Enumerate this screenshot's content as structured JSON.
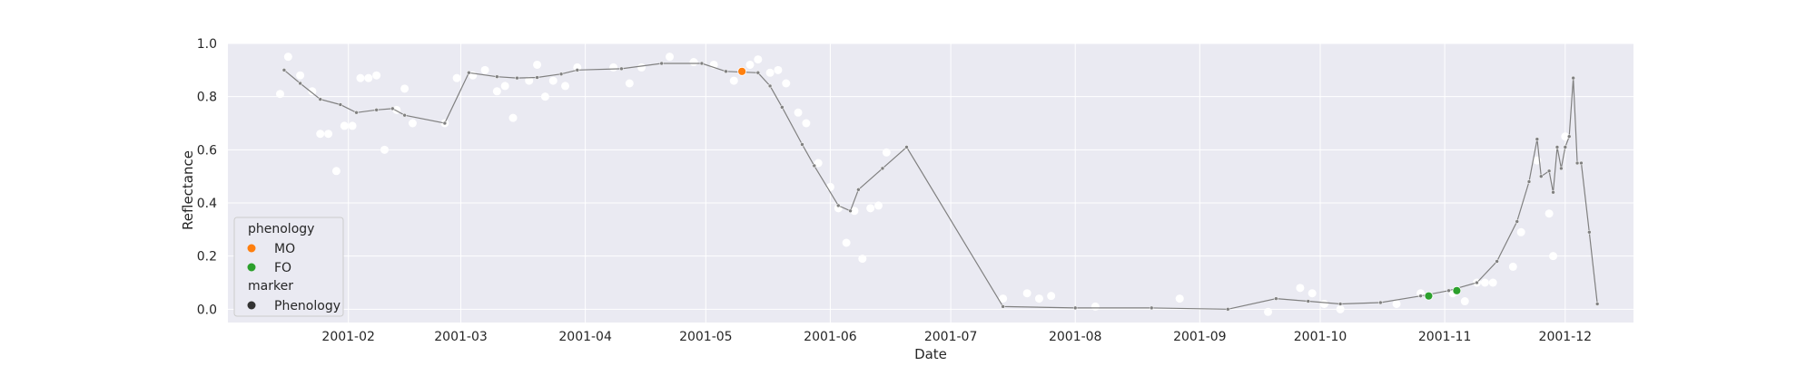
{
  "colors": {
    "plot_bg": "#eaeaf2",
    "grid": "#ffffff",
    "line": "#808080",
    "point_fill": "#808080",
    "point_edge": "#ffffff",
    "raw": "#ffffff",
    "MO": "#ff7f0e",
    "FO": "#2ca02c",
    "marker_dot": "#333333",
    "legend_border": "#cccccc"
  },
  "legend": {
    "title_hue": "phenology",
    "mo_label": "MO",
    "fo_label": "FO",
    "title_marker": "marker",
    "marker_label": "Phenology",
    "placement": "lower-left"
  },
  "chart_data": {
    "type": "scatter",
    "xlabel": "Date",
    "ylabel": "Reflectance",
    "xlim": [
      "2001-01-02",
      "2001-12-18"
    ],
    "ylim": [
      -0.05,
      1.0
    ],
    "x_ticks": [
      "2001-02",
      "2001-03",
      "2001-04",
      "2001-05",
      "2001-06",
      "2001-07",
      "2001-08",
      "2001-09",
      "2001-10",
      "2001-11",
      "2001-12"
    ],
    "y_ticks": [
      "0.0",
      "0.2",
      "0.4",
      "0.6",
      "0.8",
      "1.0"
    ],
    "grid": true,
    "series": [
      {
        "kind": "line",
        "points": [
          [
            "2001-01-16",
            0.9
          ],
          [
            "2001-01-20",
            0.85
          ],
          [
            "2001-01-25",
            0.79
          ],
          [
            "2001-01-30",
            0.77
          ],
          [
            "2001-02-03",
            0.74
          ],
          [
            "2001-02-08",
            0.75
          ],
          [
            "2001-02-12",
            0.755
          ],
          [
            "2001-02-15",
            0.73
          ],
          [
            "2001-02-25",
            0.7
          ],
          [
            "2001-03-03",
            0.89
          ],
          [
            "2001-03-10",
            0.875
          ],
          [
            "2001-03-15",
            0.87
          ],
          [
            "2001-03-20",
            0.872
          ],
          [
            "2001-03-26",
            0.885
          ],
          [
            "2001-03-30",
            0.9
          ],
          [
            "2001-04-10",
            0.905
          ],
          [
            "2001-04-20",
            0.925
          ],
          [
            "2001-04-30",
            0.925
          ],
          [
            "2001-05-06",
            0.895
          ],
          [
            "2001-05-14",
            0.89
          ],
          [
            "2001-05-17",
            0.84
          ],
          [
            "2001-05-20",
            0.76
          ],
          [
            "2001-05-25",
            0.62
          ],
          [
            "2001-05-28",
            0.54
          ],
          [
            "2001-06-03",
            0.39
          ],
          [
            "2001-06-06",
            0.37
          ],
          [
            "2001-06-08",
            0.45
          ],
          [
            "2001-06-14",
            0.53
          ],
          [
            "2001-06-20",
            0.61
          ],
          [
            "2001-07-14",
            0.01
          ],
          [
            "2001-08-01",
            0.005
          ],
          [
            "2001-08-20",
            0.005
          ],
          [
            "2001-09-08",
            0.0
          ],
          [
            "2001-09-20",
            0.04
          ],
          [
            "2001-09-28",
            0.03
          ],
          [
            "2001-10-06",
            0.02
          ],
          [
            "2001-10-16",
            0.025
          ],
          [
            "2001-10-26",
            0.05
          ],
          [
            "2001-11-02",
            0.07
          ],
          [
            "2001-11-09",
            0.1
          ],
          [
            "2001-11-14",
            0.18
          ],
          [
            "2001-11-19",
            0.33
          ],
          [
            "2001-11-22",
            0.48
          ],
          [
            "2001-11-24",
            0.64
          ],
          [
            "2001-11-25",
            0.5
          ],
          [
            "2001-11-27",
            0.52
          ],
          [
            "2001-11-28",
            0.44
          ],
          [
            "2001-11-29",
            0.61
          ],
          [
            "2001-11-30",
            0.53
          ],
          [
            "2001-12-01",
            0.61
          ],
          [
            "2001-12-02",
            0.65
          ],
          [
            "2001-12-03",
            0.87
          ],
          [
            "2001-12-04",
            0.55
          ],
          [
            "2001-12-05",
            0.55
          ],
          [
            "2001-12-07",
            0.29
          ],
          [
            "2001-12-09",
            0.02
          ]
        ]
      },
      {
        "kind": "raw-points",
        "points": [
          [
            "2001-01-15",
            0.81
          ],
          [
            "2001-01-17",
            0.95
          ],
          [
            "2001-01-20",
            0.88
          ],
          [
            "2001-01-23",
            0.82
          ],
          [
            "2001-01-25",
            0.66
          ],
          [
            "2001-01-27",
            0.66
          ],
          [
            "2001-01-29",
            0.52
          ],
          [
            "2001-01-31",
            0.69
          ],
          [
            "2001-02-02",
            0.69
          ],
          [
            "2001-02-04",
            0.87
          ],
          [
            "2001-02-06",
            0.87
          ],
          [
            "2001-02-08",
            0.88
          ],
          [
            "2001-02-10",
            0.6
          ],
          [
            "2001-02-13",
            0.75
          ],
          [
            "2001-02-15",
            0.83
          ],
          [
            "2001-02-17",
            0.7
          ],
          [
            "2001-02-25",
            0.7
          ],
          [
            "2001-02-28",
            0.87
          ],
          [
            "2001-03-04",
            0.88
          ],
          [
            "2001-03-07",
            0.9
          ],
          [
            "2001-03-10",
            0.82
          ],
          [
            "2001-03-12",
            0.84
          ],
          [
            "2001-03-14",
            0.72
          ],
          [
            "2001-03-18",
            0.86
          ],
          [
            "2001-03-20",
            0.92
          ],
          [
            "2001-03-22",
            0.8
          ],
          [
            "2001-03-24",
            0.86
          ],
          [
            "2001-03-27",
            0.84
          ],
          [
            "2001-03-30",
            0.91
          ],
          [
            "2001-04-08",
            0.91
          ],
          [
            "2001-04-12",
            0.85
          ],
          [
            "2001-04-15",
            0.91
          ],
          [
            "2001-04-22",
            0.95
          ],
          [
            "2001-04-28",
            0.93
          ],
          [
            "2001-05-03",
            0.92
          ],
          [
            "2001-05-08",
            0.86
          ],
          [
            "2001-05-12",
            0.92
          ],
          [
            "2001-05-14",
            0.94
          ],
          [
            "2001-05-17",
            0.89
          ],
          [
            "2001-05-19",
            0.9
          ],
          [
            "2001-05-21",
            0.85
          ],
          [
            "2001-05-24",
            0.74
          ],
          [
            "2001-05-26",
            0.7
          ],
          [
            "2001-05-29",
            0.55
          ],
          [
            "2001-06-01",
            0.46
          ],
          [
            "2001-06-03",
            0.38
          ],
          [
            "2001-06-05",
            0.25
          ],
          [
            "2001-06-07",
            0.37
          ],
          [
            "2001-06-09",
            0.19
          ],
          [
            "2001-06-11",
            0.38
          ],
          [
            "2001-06-13",
            0.39
          ],
          [
            "2001-06-15",
            0.59
          ],
          [
            "2001-07-14",
            0.04
          ],
          [
            "2001-07-20",
            0.06
          ],
          [
            "2001-07-23",
            0.04
          ],
          [
            "2001-07-26",
            0.05
          ],
          [
            "2001-08-06",
            0.01
          ],
          [
            "2001-08-27",
            0.04
          ],
          [
            "2001-09-18",
            -0.01
          ],
          [
            "2001-09-26",
            0.08
          ],
          [
            "2001-09-29",
            0.06
          ],
          [
            "2001-10-02",
            0.02
          ],
          [
            "2001-10-06",
            0.0
          ],
          [
            "2001-10-20",
            0.02
          ],
          [
            "2001-10-26",
            0.06
          ],
          [
            "2001-11-03",
            0.06
          ],
          [
            "2001-11-06",
            0.03
          ],
          [
            "2001-11-09",
            0.1
          ],
          [
            "2001-11-11",
            0.1
          ],
          [
            "2001-11-13",
            0.1
          ],
          [
            "2001-11-18",
            0.16
          ],
          [
            "2001-11-20",
            0.29
          ],
          [
            "2001-11-24",
            0.56
          ],
          [
            "2001-11-27",
            0.36
          ],
          [
            "2001-11-28",
            0.2
          ],
          [
            "2001-12-01",
            0.65
          ]
        ]
      },
      {
        "name": "MO",
        "kind": "phenology",
        "points": [
          [
            "2001-05-10",
            0.895
          ]
        ]
      },
      {
        "name": "FO",
        "kind": "phenology",
        "points": [
          [
            "2001-10-28",
            0.05
          ],
          [
            "2001-11-04",
            0.07
          ]
        ]
      }
    ]
  }
}
